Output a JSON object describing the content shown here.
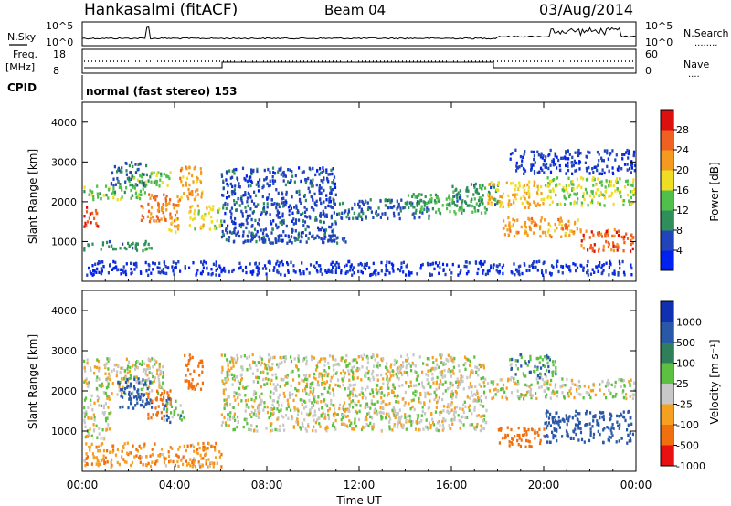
{
  "header": {
    "title": "Hankasalmi (fitACF)",
    "beam": "Beam 04",
    "date": "03/Aug/2014"
  },
  "noise_panel": {
    "left_label": "N.Sky",
    "right_label": "N.Search",
    "right_dots": "........",
    "left_ticks": [
      "10^5",
      "10^0"
    ],
    "right_ticks": [
      "10^5",
      "10^0"
    ]
  },
  "freq_panel": {
    "left_label_1": "Freq.",
    "left_label_2": "[MHz]",
    "left_ticks": [
      "18",
      "8"
    ],
    "right_label": "Nave",
    "right_dots": "....",
    "right_ticks": [
      "60",
      "0"
    ]
  },
  "cpid_panel": {
    "label": "CPID",
    "text": "normal (fast stereo) 153"
  },
  "chart_data": [
    {
      "type": "heatmap",
      "name": "power",
      "ylabel": "Slant Range [km]",
      "yticks": [
        "1000",
        "2000",
        "3000",
        "4000"
      ],
      "ylim": [
        0,
        4500
      ],
      "xlim_hours": [
        0,
        24
      ],
      "colorbar": {
        "label": "Power [dB]",
        "ticks": [
          "4",
          "8",
          "12",
          "16",
          "20",
          "24",
          "28"
        ],
        "colors": [
          "#0022ee",
          "#2244bb",
          "#2f8f5a",
          "#4fc04a",
          "#eedd22",
          "#f59a20",
          "#f06020",
          "#dd1010"
        ]
      },
      "regions": [
        {
          "t0": 0.0,
          "t1": 0.7,
          "r0": 1350,
          "r1": 1900,
          "p": 28
        },
        {
          "t0": 0.0,
          "t1": 2.8,
          "r0": 2050,
          "r1": 2400,
          "p": 14
        },
        {
          "t0": 2.0,
          "t1": 3.8,
          "r0": 2300,
          "r1": 2750,
          "p": 14
        },
        {
          "t0": 1.2,
          "t1": 2.8,
          "r0": 2400,
          "r1": 3000,
          "p": 8
        },
        {
          "t0": 2.5,
          "t1": 4.2,
          "r0": 1500,
          "r1": 2200,
          "p": 24
        },
        {
          "t0": 3.6,
          "t1": 4.2,
          "r0": 1200,
          "r1": 1600,
          "p": 20
        },
        {
          "t0": 4.2,
          "t1": 5.2,
          "r0": 2050,
          "r1": 2900,
          "p": 22
        },
        {
          "t0": 4.6,
          "t1": 6.0,
          "r0": 1300,
          "r1": 1900,
          "p": 18
        },
        {
          "t0": 0.0,
          "t1": 3.0,
          "r0": 750,
          "r1": 1000,
          "p": 10
        },
        {
          "t0": 6.0,
          "t1": 11.0,
          "r0": 1000,
          "r1": 2850,
          "p": 6
        },
        {
          "t0": 6.5,
          "t1": 11.5,
          "r0": 950,
          "r1": 1150,
          "p": 7
        },
        {
          "t0": 11.0,
          "t1": 15.0,
          "r0": 1550,
          "r1": 2050,
          "p": 7
        },
        {
          "t0": 14.0,
          "t1": 17.5,
          "r0": 1700,
          "r1": 2200,
          "p": 12
        },
        {
          "t0": 16.0,
          "t1": 18.0,
          "r0": 1900,
          "r1": 2450,
          "p": 10
        },
        {
          "t0": 17.5,
          "t1": 20.0,
          "r0": 1850,
          "r1": 2500,
          "p": 20
        },
        {
          "t0": 18.2,
          "t1": 21.5,
          "r0": 1100,
          "r1": 1600,
          "p": 22
        },
        {
          "t0": 20.0,
          "t1": 24.0,
          "r0": 1900,
          "r1": 2600,
          "p": 16
        },
        {
          "t0": 21.5,
          "t1": 24.0,
          "r0": 750,
          "r1": 1300,
          "p": 26
        },
        {
          "t0": 18.5,
          "t1": 24.0,
          "r0": 2700,
          "r1": 3300,
          "p": 5
        },
        {
          "t0": 0.0,
          "t1": 24.0,
          "r0": 150,
          "r1": 500,
          "p": 4
        }
      ]
    },
    {
      "type": "heatmap",
      "name": "velocity",
      "ylabel": "Slant Range [km]",
      "yticks": [
        "1000",
        "2000",
        "3000",
        "4000"
      ],
      "ylim": [
        0,
        4500
      ],
      "xlim_hours": [
        0,
        24
      ],
      "colorbar": {
        "label": "Velocity [m s⁻¹]",
        "ticks": [
          "1000",
          "500",
          "100",
          "25",
          "-25",
          "-100",
          "-500",
          "-1000"
        ],
        "colors": [
          "#1030b0",
          "#2a58a8",
          "#2f7f5a",
          "#5cc040",
          "#c8c8c8",
          "#f5a020",
          "#f07010",
          "#e81010"
        ]
      },
      "regions": [
        {
          "t0": 0.0,
          "t1": 3.5,
          "r0": 1900,
          "r1": 2800,
          "v": 0
        },
        {
          "t0": 0.0,
          "t1": 1.2,
          "r0": 800,
          "r1": 1900,
          "v": 0
        },
        {
          "t0": 1.5,
          "t1": 3.0,
          "r0": 1500,
          "r1": 2300,
          "v": 400
        },
        {
          "t0": 2.8,
          "t1": 3.8,
          "r0": 1300,
          "r1": 2000,
          "v": -300
        },
        {
          "t0": 3.5,
          "t1": 4.4,
          "r0": 1200,
          "r1": 1800,
          "v": 80
        },
        {
          "t0": 4.4,
          "t1": 5.2,
          "r0": 2000,
          "r1": 2900,
          "v": -200
        },
        {
          "t0": 6.0,
          "t1": 17.5,
          "r0": 1000,
          "r1": 2900,
          "v": 0
        },
        {
          "t0": 17.5,
          "t1": 24.0,
          "r0": 1800,
          "r1": 2300,
          "v": 0
        },
        {
          "t0": 18.0,
          "t1": 20.0,
          "r0": 600,
          "r1": 1100,
          "v": -400
        },
        {
          "t0": 18.5,
          "t1": 20.5,
          "r0": 2300,
          "r1": 2900,
          "v": 80
        },
        {
          "t0": 20.0,
          "t1": 24.0,
          "r0": 700,
          "r1": 1500,
          "v": 350
        },
        {
          "t0": 0.0,
          "t1": 6.0,
          "r0": 100,
          "r1": 700,
          "v": -80
        }
      ]
    }
  ],
  "xaxis": {
    "ticks": [
      "00:00",
      "04:00",
      "08:00",
      "12:00",
      "16:00",
      "20:00",
      "00:00"
    ],
    "label": "Time UT"
  }
}
